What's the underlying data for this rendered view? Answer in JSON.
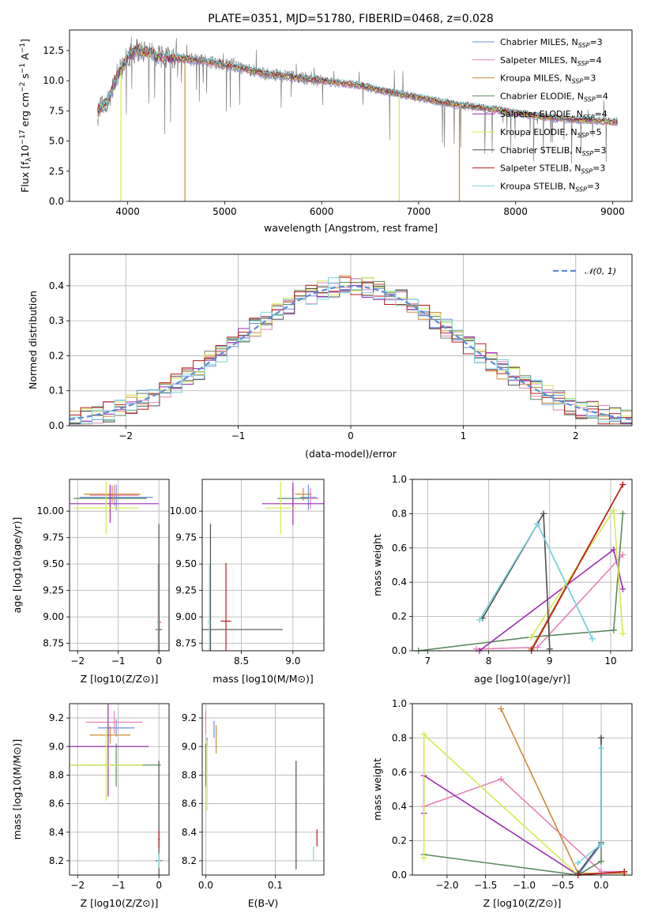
{
  "title": "PLATE=0351, MJD=51780, FIBERID=0468, z=0.028",
  "colors": {
    "Chabrier MILES": "#6a8fd8",
    "Salpeter MILES": "#e582b8",
    "Kroupa MILES": "#cc8a38",
    "Chabrier ELODIE": "#5d8a5d",
    "Salpeter ELODIE": "#9a2fb0",
    "Kroupa ELODIE": "#d6ea50",
    "Chabrier STELIB": "#505050",
    "Salpeter STELIB": "#b71c1c",
    "Kroupa STELIB": "#7ad6de",
    "data": "#808080",
    "normal": "#5b8dd6"
  },
  "chart_data": [
    {
      "type": "line",
      "panel": "spectrum",
      "title": "PLATE=0351, MJD=51780, FIBERID=0468, z=0.028",
      "xlabel": "wavelength [Angstrom, rest frame]",
      "ylabel": "Flux [f_λ 10^-17 erg cm^-2 s^-1 A^-1]",
      "xlim": [
        3400,
        9200
      ],
      "ylim": [
        0,
        14.2
      ],
      "xticks": [
        4000,
        5000,
        6000,
        7000,
        8000,
        9000
      ],
      "yticks": [
        0.0,
        2.5,
        5.0,
        7.5,
        10.0,
        12.5
      ],
      "legend_position": "top-right",
      "legend": [
        "Chabrier MILES, N_SSP=3",
        "Salpeter MILES, N_SSP=4",
        "Kroupa MILES, N_SSP=3",
        "Chabrier ELODIE, N_SSP=4",
        "Salpeter ELODIE, N_SSP=4",
        "Kroupa ELODIE, N_SSP=5",
        "Chabrier STELIB, N_SSP=3",
        "Salpeter STELIB, N_SSP=3",
        "Kroupa STELIB, N_SSP=3"
      ],
      "continuum": {
        "x": [
          3700,
          3800,
          3900,
          4000,
          4100,
          4200,
          4300,
          4400,
          4600,
          4800,
          5000,
          5200,
          5400,
          5600,
          5800,
          6000,
          6200,
          6400,
          6600,
          6800,
          7000,
          7200,
          7400,
          7600,
          7800,
          8000,
          8200,
          8400,
          8600,
          8800,
          9000
        ],
        "y": [
          7.6,
          8.4,
          10.5,
          12.0,
          12.5,
          12.4,
          12.0,
          11.9,
          11.8,
          11.6,
          11.3,
          11.0,
          10.6,
          10.4,
          10.2,
          10.0,
          9.8,
          9.6,
          9.2,
          8.9,
          8.6,
          8.3,
          8.0,
          7.8,
          7.6,
          7.3,
          7.1,
          6.9,
          6.8,
          6.7,
          6.6
        ]
      }
    },
    {
      "type": "histogram",
      "panel": "residuals",
      "xlabel": "(data-model)/error",
      "ylabel": "Normed distribution",
      "xlim": [
        -2.5,
        2.5
      ],
      "ylim": [
        0,
        0.49
      ],
      "xticks": [
        -2,
        -1,
        0,
        1,
        2
      ],
      "yticks": [
        0.0,
        0.1,
        0.2,
        0.3,
        0.4
      ],
      "legend_position": "top-right",
      "legend": [
        "𝒩(0, 1)"
      ]
    },
    {
      "type": "scatter",
      "panel": "age-vs-Z",
      "xlabel": "Z [log10(Z/Z⊙)]",
      "ylabel": "age [log10(age/yr)]",
      "xlim": [
        -2.2,
        0.25
      ],
      "ylim": [
        8.68,
        10.3
      ],
      "xticks": [
        -2,
        -1,
        0
      ],
      "yticks": [
        8.75,
        9.0,
        9.25,
        9.5,
        9.75,
        10.0
      ],
      "points": [
        {
          "model": "Chabrier MILES",
          "x": -1.05,
          "y": 10.13,
          "xerr": 0.9,
          "yerr": 0.12
        },
        {
          "model": "Salpeter MILES",
          "x": -1.1,
          "y": 10.15,
          "xerr": 0.6,
          "yerr": 0.1
        },
        {
          "model": "Kroupa MILES",
          "x": -1.15,
          "y": 10.16,
          "xerr": 0.7,
          "yerr": 0.08
        },
        {
          "model": "Chabrier ELODIE",
          "x": -1.2,
          "y": 10.12,
          "xerr": 0.9,
          "yerr": 0.1
        },
        {
          "model": "Salpeter ELODIE",
          "x": -1.2,
          "y": 10.07,
          "xerr": 1.2,
          "yerr": 0.18
        },
        {
          "model": "Kroupa ELODIE",
          "x": -1.3,
          "y": 10.03,
          "xerr": 0.8,
          "yerr": 0.25
        },
        {
          "model": "Chabrier STELIB",
          "x": 0.0,
          "y": 8.88,
          "xerr": 0.08,
          "yerr": 1.0
        },
        {
          "model": "Salpeter STELIB",
          "x": 0.0,
          "y": 8.95,
          "xerr": 0.05,
          "yerr": 0.55
        },
        {
          "model": "Kroupa STELIB",
          "x": -0.02,
          "y": 8.95,
          "xerr": 0.03,
          "yerr": 0.55
        }
      ]
    },
    {
      "type": "scatter",
      "panel": "age-vs-mass",
      "xlabel": "mass [log10(M/M⊙)]",
      "ylabel": "",
      "xlim": [
        8.12,
        9.3
      ],
      "ylim": [
        8.68,
        10.3
      ],
      "xticks": [
        8.5,
        9.0
      ],
      "yticks": [
        8.75,
        9.0,
        9.25,
        9.5,
        9.75,
        10.0
      ],
      "points": [
        {
          "model": "Chabrier MILES",
          "x": 9.15,
          "y": 10.13,
          "xerr": 0.08,
          "yerr": 0.12
        },
        {
          "model": "Salpeter MILES",
          "x": 9.17,
          "y": 10.12,
          "xerr": 0.08,
          "yerr": 0.1
        },
        {
          "model": "Kroupa MILES",
          "x": 9.1,
          "y": 10.16,
          "xerr": 0.08,
          "yerr": 0.06
        },
        {
          "model": "Chabrier ELODIE",
          "x": 9.0,
          "y": 10.12,
          "xerr": 0.15,
          "yerr": 0.1
        },
        {
          "model": "Salpeter ELODIE",
          "x": 9.0,
          "y": 10.07,
          "xerr": 0.3,
          "yerr": 0.2
        },
        {
          "model": "Kroupa ELODIE",
          "x": 8.88,
          "y": 10.03,
          "xerr": 0.15,
          "yerr": 0.25
        },
        {
          "model": "Chabrier STELIB",
          "x": 8.2,
          "y": 8.88,
          "xerr": 0.7,
          "yerr": 1.0
        },
        {
          "model": "Salpeter STELIB",
          "x": 8.35,
          "y": 8.96,
          "xerr": 0.05,
          "yerr": 0.55
        },
        {
          "model": "Kroupa STELIB",
          "x": 8.19,
          "y": 8.95,
          "xerr": 0.02,
          "yerr": 0.55
        }
      ]
    },
    {
      "type": "line",
      "panel": "mass-weight-vs-age",
      "xlabel": "age [log10(age/yr)]",
      "ylabel": "mass weight",
      "xlim": [
        6.75,
        10.35
      ],
      "ylim": [
        0,
        1.0
      ],
      "xticks": [
        7,
        8,
        9,
        10
      ],
      "yticks": [
        0.0,
        0.2,
        0.4,
        0.6,
        0.8,
        1.0
      ],
      "series": [
        {
          "model": "Chabrier MILES",
          "x": [
            8.8,
            9.7
          ],
          "y": [
            0.74,
            0.07
          ]
        },
        {
          "model": "Salpeter MILES",
          "x": [
            7.8,
            8.8,
            10.2
          ],
          "y": [
            0.01,
            0.02,
            0.56
          ]
        },
        {
          "model": "Kroupa MILES",
          "x": [
            8.7,
            10.2
          ],
          "y": [
            0.01,
            0.97
          ]
        },
        {
          "model": "Chabrier ELODIE",
          "x": [
            6.85,
            8.7,
            10.05,
            10.2
          ],
          "y": [
            0.0,
            0.08,
            0.12,
            0.8
          ]
        },
        {
          "model": "Salpeter ELODIE",
          "x": [
            7.85,
            10.05,
            10.2
          ],
          "y": [
            0.0,
            0.59,
            0.36
          ]
        },
        {
          "model": "Kroupa ELODIE",
          "x": [
            8.7,
            10.05,
            10.2
          ],
          "y": [
            0.08,
            0.82,
            0.1
          ]
        },
        {
          "model": "Chabrier STELIB",
          "x": [
            7.9,
            8.9,
            9.0
          ],
          "y": [
            0.19,
            0.8,
            0.01
          ]
        },
        {
          "model": "Salpeter STELIB",
          "x": [
            8.7,
            10.2
          ],
          "y": [
            0.0,
            0.97
          ]
        },
        {
          "model": "Kroupa STELIB",
          "x": [
            7.85,
            8.8,
            9.7
          ],
          "y": [
            0.18,
            0.74,
            0.07
          ]
        }
      ]
    },
    {
      "type": "scatter",
      "panel": "mass-vs-Z",
      "xlabel": "Z [log10(Z/Z⊙)]",
      "ylabel": "mass [log10(M/M⊙)]",
      "xlim": [
        -2.2,
        0.25
      ],
      "ylim": [
        8.1,
        9.3
      ],
      "xticks": [
        -2,
        -1,
        0
      ],
      "yticks": [
        8.2,
        8.4,
        8.6,
        8.8,
        9.0,
        9.2
      ],
      "points": [
        {
          "model": "Chabrier MILES",
          "x": -1.05,
          "y": 9.13,
          "xerr": 0.45,
          "yerr": 0.06
        },
        {
          "model": "Salpeter MILES",
          "x": -1.1,
          "y": 9.17,
          "xerr": 0.7,
          "yerr": 0.08
        },
        {
          "model": "Kroupa MILES",
          "x": -1.2,
          "y": 9.08,
          "xerr": 0.5,
          "yerr": 0.06
        },
        {
          "model": "Chabrier ELODIE",
          "x": -1.05,
          "y": 8.87,
          "xerr": 1.1,
          "yerr": 0.15
        },
        {
          "model": "Salpeter ELODIE",
          "x": -1.25,
          "y": 9.0,
          "xerr": 1.0,
          "yerr": 0.35
        },
        {
          "model": "Kroupa ELODIE",
          "x": -1.3,
          "y": 8.87,
          "xerr": 0.9,
          "yerr": 0.25
        },
        {
          "model": "Chabrier STELIB",
          "x": 0.0,
          "y": 8.2,
          "xerr": 0.08,
          "yerr": 0.7
        },
        {
          "model": "Salpeter STELIB",
          "x": 0.0,
          "y": 8.35,
          "xerr": 0.02,
          "yerr": 0.06
        },
        {
          "model": "Kroupa STELIB",
          "x": 0.0,
          "y": 8.2,
          "xerr": 0.04,
          "yerr": 0.05
        }
      ]
    },
    {
      "type": "scatter",
      "panel": "mass-vs-EBV",
      "xlabel": "E(B-V)",
      "ylabel": "",
      "xlim": [
        -0.005,
        0.17
      ],
      "ylim": [
        8.1,
        9.3
      ],
      "xticks": [
        0.0,
        0.1
      ],
      "yticks": [
        8.2,
        8.4,
        8.6,
        8.8,
        9.0,
        9.2
      ],
      "points": [
        {
          "model": "Chabrier MILES",
          "x": 0.012,
          "y": 9.12,
          "yerr": 0.06
        },
        {
          "model": "Salpeter MILES",
          "x": 0.0,
          "y": 9.17,
          "yerr": 0.08
        },
        {
          "model": "Kroupa MILES",
          "x": 0.015,
          "y": 9.05,
          "yerr": 0.1
        },
        {
          "model": "Chabrier ELODIE",
          "x": 0.0,
          "y": 8.87,
          "yerr": 0.15
        },
        {
          "model": "Salpeter ELODIE",
          "x": 0.002,
          "y": 9.03,
          "yerr": 0.03
        },
        {
          "model": "Kroupa ELODIE",
          "x": 0.002,
          "y": 8.8,
          "yerr": 0.25
        },
        {
          "model": "Chabrier STELIB",
          "x": 0.13,
          "y": 8.52,
          "yerr": 0.38
        },
        {
          "model": "Salpeter STELIB",
          "x": 0.16,
          "y": 8.36,
          "yerr": 0.06
        },
        {
          "model": "Kroupa STELIB",
          "x": 0.155,
          "y": 8.25,
          "yerr": 0.05
        }
      ]
    },
    {
      "type": "line",
      "panel": "mass-weight-vs-Z",
      "xlabel": "Z [log10(Z/Z⊙)]",
      "ylabel": "mass weight",
      "xlim": [
        -2.45,
        0.4
      ],
      "ylim": [
        0,
        1.0
      ],
      "xticks": [
        -2.0,
        -1.5,
        -1.0,
        -0.5,
        0.0
      ],
      "yticks": [
        0.0,
        0.2,
        0.4,
        0.6,
        0.8,
        1.0
      ],
      "series": [
        {
          "model": "Chabrier MILES",
          "x": [
            0.0,
            0.0,
            -0.3
          ],
          "y": [
            0.74,
            0.18,
            0.0
          ]
        },
        {
          "model": "Salpeter MILES",
          "x": [
            -2.3,
            -1.3,
            0.0,
            0.3
          ],
          "y": [
            0.4,
            0.56,
            0.02,
            0.02
          ]
        },
        {
          "model": "Kroupa MILES",
          "x": [
            -1.3,
            -0.3,
            0.3
          ],
          "y": [
            0.97,
            0.01,
            0.01
          ]
        },
        {
          "model": "Chabrier ELODIE",
          "x": [
            -2.3,
            -0.3,
            0.0,
            0.0
          ],
          "y": [
            0.12,
            0.0,
            0.08,
            0.8
          ]
        },
        {
          "model": "Salpeter ELODIE",
          "x": [
            -2.3,
            -2.3,
            -0.3
          ],
          "y": [
            0.36,
            0.58,
            0.0
          ]
        },
        {
          "model": "Kroupa ELODIE",
          "x": [
            -2.3,
            -2.3,
            -0.3
          ],
          "y": [
            0.1,
            0.82,
            0.0
          ]
        },
        {
          "model": "Chabrier STELIB",
          "x": [
            0.0,
            0.0,
            -0.3
          ],
          "y": [
            0.8,
            0.19,
            0.01
          ]
        },
        {
          "model": "Salpeter STELIB",
          "x": [
            -0.3,
            0.3
          ],
          "y": [
            0.0,
            0.02
          ]
        },
        {
          "model": "Kroupa STELIB",
          "x": [
            0.0,
            0.0,
            -0.3
          ],
          "y": [
            0.74,
            0.18,
            0.07
          ]
        }
      ]
    }
  ]
}
